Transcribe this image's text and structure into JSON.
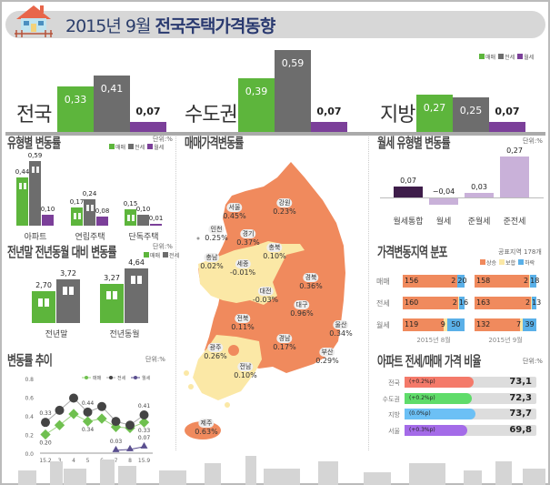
{
  "header": {
    "title_date": "2015년 9월",
    "title_main": "전국주택가격동향"
  },
  "colors": {
    "sale": "#5db53c",
    "jeonse": "#6d6d6d",
    "monthly": "#7b3f99",
    "rise": "#f08a5d",
    "flat": "#fbe8a6",
    "fall": "#5ab0e8"
  },
  "legend": {
    "sale": "매매",
    "jeonse": "전세",
    "monthly": "월세"
  },
  "unit": "단위:%",
  "chart_data": [
    {
      "type": "bar",
      "id": "regional",
      "categories": [
        "전국",
        "수도권",
        "지방"
      ],
      "series": [
        {
          "name": "매매",
          "values": [
            0.33,
            0.39,
            0.27
          ]
        },
        {
          "name": "전세",
          "values": [
            0.41,
            0.59,
            0.25
          ]
        },
        {
          "name": "월세",
          "values": [
            0.07,
            0.07,
            0.07
          ]
        }
      ]
    },
    {
      "type": "bar",
      "id": "by_type",
      "title": "유형별 변동률",
      "categories": [
        "아파트",
        "연립주택",
        "단독주택"
      ],
      "series": [
        {
          "name": "매매",
          "values": [
            0.44,
            0.17,
            0.15
          ]
        },
        {
          "name": "전세",
          "values": [
            0.59,
            0.24,
            0.1
          ]
        },
        {
          "name": "월세",
          "values": [
            0.1,
            0.08,
            0.01
          ]
        }
      ]
    },
    {
      "type": "bar",
      "id": "yoy",
      "title": "전년말 전년동월 대비 변동률",
      "categories": [
        "전년말",
        "전년동월"
      ],
      "series": [
        {
          "name": "매매",
          "values": [
            2.7,
            3.27
          ]
        },
        {
          "name": "전세",
          "values": [
            3.72,
            4.64
          ]
        }
      ]
    },
    {
      "type": "line",
      "id": "trend",
      "title": "변동률 추이",
      "x": [
        "15.2",
        "3",
        "4",
        "5",
        "6",
        "7",
        "8",
        "15.9"
      ],
      "yticks": [
        "0.0",
        "0.2",
        "0.4",
        "0.6",
        "0.8"
      ],
      "ylim": [
        0,
        0.8
      ],
      "series": [
        {
          "name": "매매",
          "values": [
            0.2,
            0.3,
            0.42,
            0.34,
            0.37,
            0.28,
            0.27,
            0.33
          ]
        },
        {
          "name": "전세",
          "values": [
            0.33,
            0.46,
            0.59,
            0.44,
            0.5,
            0.34,
            0.3,
            0.41
          ]
        },
        {
          "name": "월세",
          "values": [
            null,
            null,
            null,
            null,
            null,
            0.03,
            0.04,
            0.07
          ]
        }
      ],
      "data_labels": [
        {
          "series": "전세",
          "x": "15.2",
          "text": "0.33"
        },
        {
          "series": "전세",
          "x": "5",
          "text": "0.44"
        },
        {
          "series": "전세",
          "x": "15.9",
          "text": "0.41"
        },
        {
          "series": "매매",
          "x": "15.2",
          "text": "0.20"
        },
        {
          "series": "매매",
          "x": "5",
          "text": "0.34"
        },
        {
          "series": "매매",
          "x": "15.9",
          "text": "0.33"
        },
        {
          "series": "월세",
          "x": "7",
          "text": "0.03"
        },
        {
          "series": "월세",
          "x": "15.9",
          "text": "0.07"
        }
      ]
    },
    {
      "type": "bar",
      "id": "monthly_types",
      "title": "월세 유형별 변동률",
      "categories": [
        "월세통합",
        "월세",
        "준월세",
        "준전세"
      ],
      "values": [
        0.07,
        -0.04,
        0.03,
        0.27
      ]
    },
    {
      "type": "bar",
      "id": "distribution",
      "title": "가격변동지역 분포",
      "note": "공표지역 178개",
      "legend": [
        "상승",
        "보합",
        "하락"
      ],
      "periods": [
        "2015년 8월",
        "2015년 9월"
      ],
      "rows": [
        "매매",
        "전세",
        "월세"
      ],
      "values": {
        "2015년 8월": [
          [
            156,
            2,
            20
          ],
          [
            160,
            2,
            16
          ],
          [
            119,
            9,
            50
          ]
        ],
        "2015년 9월": [
          [
            158,
            2,
            18
          ],
          [
            163,
            2,
            13
          ],
          [
            132,
            7,
            39
          ]
        ]
      }
    },
    {
      "type": "bar",
      "id": "ratio",
      "title": "아파트 전세/매매 가격 비율",
      "categories": [
        "전국",
        "수도권",
        "지방",
        "서울"
      ],
      "values": [
        73.1,
        72.3,
        73.7,
        69.8
      ],
      "changes": [
        "(+0.2%p)",
        "(+0.2%p)",
        "(0.0%p)",
        "(+0.3%p)"
      ],
      "bar_colors": [
        "#f47a6a",
        "#5fdc6a",
        "#6cc0f5",
        "#a46be8"
      ]
    }
  ],
  "map": {
    "title": "매매가격변동률",
    "regions": [
      {
        "name": "서울",
        "value": "0.45%"
      },
      {
        "name": "강원",
        "value": "0.23%"
      },
      {
        "name": "인천",
        "value": "0.25%"
      },
      {
        "name": "경기",
        "value": "0.37%"
      },
      {
        "name": "충북",
        "value": "0.10%"
      },
      {
        "name": "충남",
        "value": "0.02%"
      },
      {
        "name": "세종",
        "value": "-0.01%"
      },
      {
        "name": "대전",
        "value": "-0.03%"
      },
      {
        "name": "경북",
        "value": "0.36%"
      },
      {
        "name": "대구",
        "value": "0.96%"
      },
      {
        "name": "전북",
        "value": "0.11%"
      },
      {
        "name": "울산",
        "value": "0.34%"
      },
      {
        "name": "경남",
        "value": "0.17%"
      },
      {
        "name": "부산",
        "value": "0.29%"
      },
      {
        "name": "광주",
        "value": "0.26%"
      },
      {
        "name": "전남",
        "value": "0.10%"
      },
      {
        "name": "제주",
        "value": "0.63%"
      }
    ]
  }
}
